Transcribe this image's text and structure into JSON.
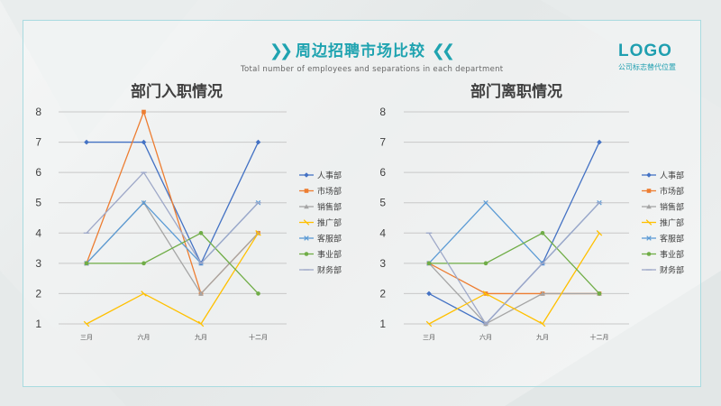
{
  "header": {
    "title": "周边招聘市场比较",
    "chevron_left": "❯❯",
    "chevron_right": "❮❮",
    "subtitle": "Total number of employees and separations in each department"
  },
  "logo": {
    "text": "LOGO",
    "sub": "公司标志替代位置"
  },
  "colors": {
    "accent": "#1fa3b0",
    "series": [
      "#4472c4",
      "#ed7d31",
      "#a5a5a5",
      "#ffc000",
      "#5b9bd5",
      "#70ad47",
      "#9ea8c8"
    ]
  },
  "chart_data": [
    {
      "type": "line",
      "title": "部门入职情况",
      "categories": [
        "三月",
        "六月",
        "九月",
        "十二月"
      ],
      "ylim": [
        1,
        8
      ],
      "yticks": [
        1,
        2,
        3,
        4,
        5,
        6,
        7,
        8
      ],
      "grid": true,
      "legend": "right",
      "series": [
        {
          "name": "人事部",
          "values": [
            7,
            7,
            3,
            7
          ]
        },
        {
          "name": "市场部",
          "values": [
            3,
            8,
            2,
            4
          ]
        },
        {
          "name": "销售部",
          "values": [
            3,
            5,
            2,
            4
          ]
        },
        {
          "name": "推广部",
          "values": [
            1,
            2,
            1,
            4
          ]
        },
        {
          "name": "客服部",
          "values": [
            3,
            5,
            3,
            5
          ]
        },
        {
          "name": "事业部",
          "values": [
            3,
            3,
            4,
            2
          ]
        },
        {
          "name": "财务部",
          "values": [
            4,
            6,
            3,
            5
          ]
        }
      ]
    },
    {
      "type": "line",
      "title": "部门离职情况",
      "categories": [
        "三月",
        "六月",
        "九月",
        "十二月"
      ],
      "ylim": [
        1,
        8
      ],
      "yticks": [
        1,
        2,
        3,
        4,
        5,
        6,
        7,
        8
      ],
      "grid": true,
      "legend": "right",
      "series": [
        {
          "name": "人事部",
          "values": [
            2,
            1,
            3,
            7
          ]
        },
        {
          "name": "市场部",
          "values": [
            3,
            2,
            2,
            2
          ]
        },
        {
          "name": "销售部",
          "values": [
            3,
            1,
            2,
            2
          ]
        },
        {
          "name": "推广部",
          "values": [
            1,
            2,
            1,
            4
          ]
        },
        {
          "name": "客服部",
          "values": [
            3,
            5,
            3,
            5
          ]
        },
        {
          "name": "事业部",
          "values": [
            3,
            3,
            4,
            2
          ]
        },
        {
          "name": "财务部",
          "values": [
            4,
            1,
            3,
            5
          ]
        }
      ]
    }
  ]
}
